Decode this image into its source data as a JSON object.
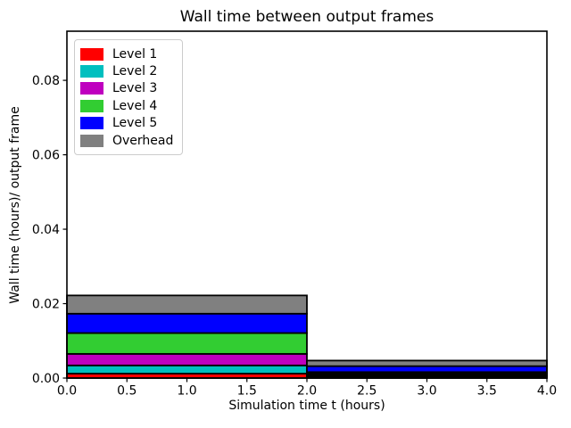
{
  "figure": {
    "background": "#ffffff"
  },
  "chart_data": {
    "type": "bar",
    "variant": "stacked-step-intervals",
    "title": "Wall time between output frames",
    "xlabel": "Simulation time t (hours)",
    "ylabel": "Wall time (hours)/ output frame",
    "xlim": [
      0.0,
      4.0
    ],
    "ylim": [
      0.0,
      0.0932
    ],
    "x_ticks": [
      "0.0",
      "0.5",
      "1.0",
      "1.5",
      "2.0",
      "2.5",
      "3.0",
      "3.5",
      "4.0"
    ],
    "x_tick_values": [
      0.0,
      0.5,
      1.0,
      1.5,
      2.0,
      2.5,
      3.0,
      3.5,
      4.0
    ],
    "y_ticks": [
      "0.00",
      "0.02",
      "0.04",
      "0.06",
      "0.08"
    ],
    "y_tick_values": [
      0.0,
      0.02,
      0.04,
      0.06,
      0.08
    ],
    "grid": false,
    "legend_position": "upper-left",
    "bar_edge_color": "#000000",
    "axis_color": "#000000",
    "intervals": [
      [
        0.0,
        2.0
      ],
      [
        2.0,
        4.0
      ]
    ],
    "series": [
      {
        "name": "Level 1",
        "color": "#ff0000",
        "values": [
          0.0012,
          0.0004
        ]
      },
      {
        "name": "Level 2",
        "color": "#00bfbf",
        "values": [
          0.0022,
          0.0004
        ]
      },
      {
        "name": "Level 3",
        "color": "#bf00bf",
        "values": [
          0.0031,
          0.0004
        ]
      },
      {
        "name": "Level 4",
        "color": "#32cd32",
        "values": [
          0.0056,
          0.0004
        ]
      },
      {
        "name": "Level 5",
        "color": "#0000ff",
        "values": [
          0.0052,
          0.0016
        ]
      },
      {
        "name": "Overhead",
        "color": "#808080",
        "values": [
          0.0049,
          0.0015
        ]
      }
    ],
    "stack_totals": [
      0.0222,
      0.0047
    ]
  }
}
